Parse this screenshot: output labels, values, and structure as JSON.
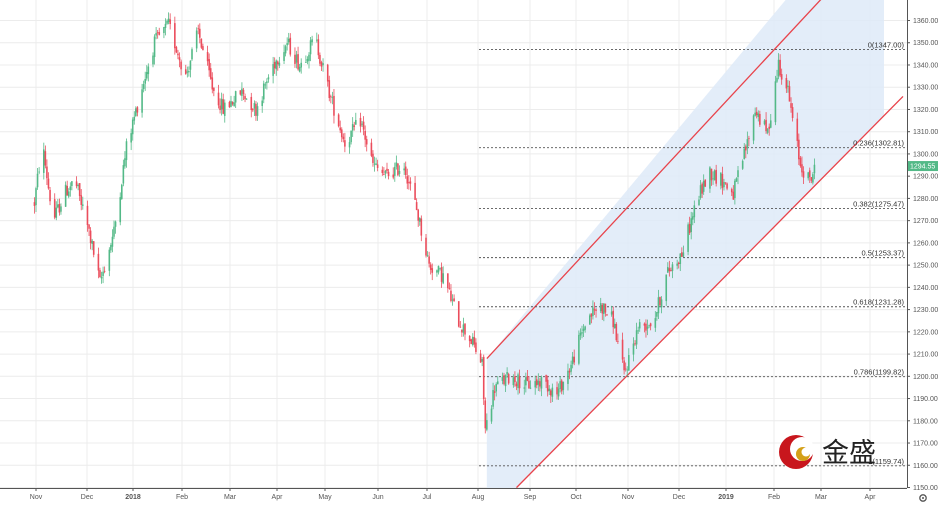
{
  "chart_data": {
    "type": "candlestick",
    "x_ticks": [
      "Nov",
      "Dec",
      "2018",
      "Feb",
      "Mar",
      "Apr",
      "May",
      "Jun",
      "Jul",
      "Aug",
      "Sep",
      "Oct",
      "Nov",
      "Dec",
      "2019",
      "Feb",
      "Mar",
      "Apr"
    ],
    "y_ticks": [
      "1360.00",
      "1350.00",
      "1340.00",
      "1330.00",
      "1320.00",
      "1310.00",
      "1300.00",
      "1290.00",
      "1280.00",
      "1270.00",
      "1260.00",
      "1250.00",
      "1240.00",
      "1230.00",
      "1220.00",
      "1210.00",
      "1200.00",
      "1190.00",
      "1180.00",
      "1170.00",
      "1160.00",
      "1150.00"
    ],
    "ylim": [
      1149,
      1367
    ],
    "grid": true,
    "last_price": "1294.55",
    "fib_levels": [
      {
        "label": "0(1347.00)",
        "value": 1347.0
      },
      {
        "label": "0.236(1302.81)",
        "value": 1302.81
      },
      {
        "label": "0.382(1275.47)",
        "value": 1275.47
      },
      {
        "label": "0.5(1253.37)",
        "value": 1253.37
      },
      {
        "label": "0.618(1231.28)",
        "value": 1231.28
      },
      {
        "label": "0.786(1199.82)",
        "value": 1199.82
      },
      {
        "label": "1(1159.74)",
        "value": 1159.74
      }
    ],
    "trend_channel": {
      "upper": [
        {
          "date": "2018-08-17",
          "price": 1208
        },
        {
          "date": "2019-02-20",
          "price": 1349
        }
      ],
      "lower": [
        {
          "date": "2018-08-22",
          "price": 1140
        },
        {
          "date": "2019-03-10",
          "price": 1282
        }
      ]
    },
    "price_path": [
      [
        "2017-10-31",
        1278
      ],
      [
        "2017-11-05",
        1305
      ],
      [
        "2017-11-12",
        1270
      ],
      [
        "2017-11-20",
        1283
      ],
      [
        "2017-11-26",
        1288
      ],
      [
        "2017-12-05",
        1265
      ],
      [
        "2017-12-12",
        1242
      ],
      [
        "2017-12-21",
        1265
      ],
      [
        "2017-12-29",
        1303
      ],
      [
        "2018-01-08",
        1330
      ],
      [
        "2018-01-16",
        1350
      ],
      [
        "2018-01-25",
        1358
      ],
      [
        "2018-02-05",
        1335
      ],
      [
        "2018-02-13",
        1355
      ],
      [
        "2018-02-22",
        1330
      ],
      [
        "2018-03-01",
        1320
      ],
      [
        "2018-03-13",
        1328
      ],
      [
        "2018-03-22",
        1320
      ],
      [
        "2018-04-02",
        1340
      ],
      [
        "2018-04-11",
        1350
      ],
      [
        "2018-04-19",
        1340
      ],
      [
        "2018-04-29",
        1352
      ],
      [
        "2018-05-09",
        1325
      ],
      [
        "2018-05-18",
        1305
      ],
      [
        "2018-05-28",
        1315
      ],
      [
        "2018-06-05",
        1295
      ],
      [
        "2018-06-13",
        1290
      ],
      [
        "2018-06-25",
        1295
      ],
      [
        "2018-07-03",
        1275
      ],
      [
        "2018-07-11",
        1250
      ],
      [
        "2018-07-20",
        1245
      ],
      [
        "2018-07-30",
        1225
      ],
      [
        "2018-08-08",
        1215
      ],
      [
        "2018-08-14",
        1205
      ],
      [
        "2018-08-16",
        1176
      ],
      [
        "2018-08-22",
        1195
      ],
      [
        "2018-09-01",
        1200
      ],
      [
        "2018-09-12",
        1196
      ],
      [
        "2018-09-22",
        1198
      ],
      [
        "2018-10-01",
        1192
      ],
      [
        "2018-10-10",
        1205
      ],
      [
        "2018-10-20",
        1226
      ],
      [
        "2018-10-29",
        1232
      ],
      [
        "2018-11-06",
        1225
      ],
      [
        "2018-11-13",
        1201
      ],
      [
        "2018-11-22",
        1222
      ],
      [
        "2018-12-02",
        1225
      ],
      [
        "2018-12-11",
        1247
      ],
      [
        "2018-12-20",
        1255
      ],
      [
        "2018-12-30",
        1280
      ],
      [
        "2019-01-07",
        1292
      ],
      [
        "2019-01-15",
        1288
      ],
      [
        "2019-01-22",
        1282
      ],
      [
        "2019-01-31",
        1305
      ],
      [
        "2019-02-05",
        1320
      ],
      [
        "2019-02-13",
        1309
      ],
      [
        "2019-02-20",
        1341
      ],
      [
        "2019-02-26",
        1328
      ],
      [
        "2019-03-01",
        1315
      ],
      [
        "2019-03-06",
        1295
      ],
      [
        "2019-03-12",
        1288
      ],
      [
        "2019-03-16",
        1294.55
      ]
    ]
  },
  "logo": {
    "text": "金盛"
  }
}
